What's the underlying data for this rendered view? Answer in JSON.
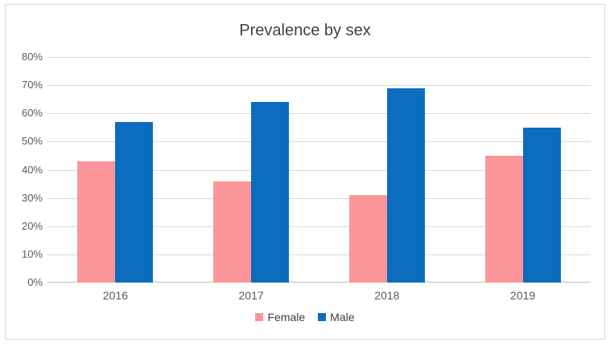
{
  "chart_data": {
    "type": "bar",
    "title": "Prevalence by sex",
    "categories": [
      "2016",
      "2017",
      "2018",
      "2019"
    ],
    "series": [
      {
        "name": "Female",
        "color": "#FA969A",
        "values": [
          43,
          36,
          31,
          45
        ]
      },
      {
        "name": "Male",
        "color": "#0C6DBE",
        "values": [
          57,
          64,
          69,
          55
        ]
      }
    ],
    "ylabel": "",
    "xlabel": "",
    "unit": "percent",
    "ylim": [
      0,
      80
    ],
    "yticks": [
      "0%",
      "10%",
      "20%",
      "30%",
      "40%",
      "50%",
      "60%",
      "70%",
      "80%"
    ],
    "grid": true,
    "legend_position": "bottom",
    "colors": {
      "gridline": "#d9d9d9",
      "axis_line": "#bfbfbf",
      "tick_text": "#595959",
      "title_text": "#404040",
      "frame_border": "#d8d8d8",
      "background": "#ffffff"
    }
  }
}
